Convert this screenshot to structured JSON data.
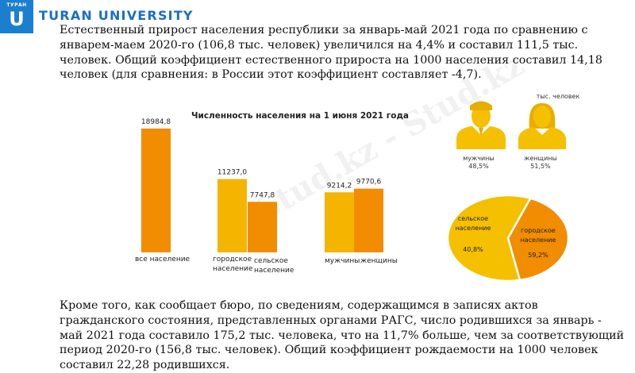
{
  "header": {
    "logo_top": "ТУРАН",
    "logo_letter": "U",
    "university": "TURAN UNIVERSITY"
  },
  "paragraphs": {
    "intro": "Естественный прирост населения республики за январь-май 2021 года по сравнению с январем-маем 2020-го (106,8 тыс. человек) увеличился на 4,4% и составил 111,5 тыс. человек. Общий коэффициент естественного прироста на 1000 населения составил 14,18 человек (для сравнения: в России этот коэффициент составляет -4,7).",
    "outro": "Кроме того, как сообщает бюро, по сведениям, содержащимся в записях актов гражданского состояния, представленных органами РАГС, число родившихся за январь - май 2021 года составило 175,2 тыс. человека, что на 11,7% больше, чем за соответствующий период 2020-го (156,8 тыс. человек). Общий коэффициент рождаемости на 1000 человек составил 22,28 родившихся."
  },
  "watermark": "Stud.kz - Stud.kz",
  "icons": {
    "male": "male-person-icon",
    "female": "female-person-icon"
  },
  "colors": {
    "orange": "#f28c00",
    "yellow": "#f5c000",
    "blue": "#1b7fd0"
  },
  "chart_data": [
    {
      "type": "bar",
      "title": "Численность населения на 1 июня 2021 года",
      "unit": "тыс. человек",
      "bars": [
        {
          "label": "все население",
          "value": 18984.8,
          "display": "18984,8",
          "color": "#f28c00"
        },
        {
          "label": "городское население",
          "value": 11237.0,
          "display": "11237,0",
          "color": "#f5b400"
        },
        {
          "label": "сельское население",
          "value": 7747.8,
          "display": "7747,8",
          "color": "#f28c00"
        },
        {
          "label": "мужчины",
          "value": 9214.2,
          "display": "9214,2",
          "color": "#f5b400"
        },
        {
          "label": "женщины",
          "value": 9770.6,
          "display": "9770,6",
          "color": "#f28c00"
        }
      ]
    },
    {
      "type": "pie",
      "slices": [
        {
          "label": "сельское население",
          "value": 40.8,
          "display": "40,8%",
          "color": "#f28c00"
        },
        {
          "label": "городское население",
          "value": 59.2,
          "display": "59,2%",
          "color": "#f5c000"
        }
      ]
    }
  ],
  "gender": {
    "unit": "тыс. человек",
    "male": {
      "label": "мужчины",
      "percent": "48,5%"
    },
    "female": {
      "label": "женщины",
      "percent": "51,5%"
    }
  }
}
